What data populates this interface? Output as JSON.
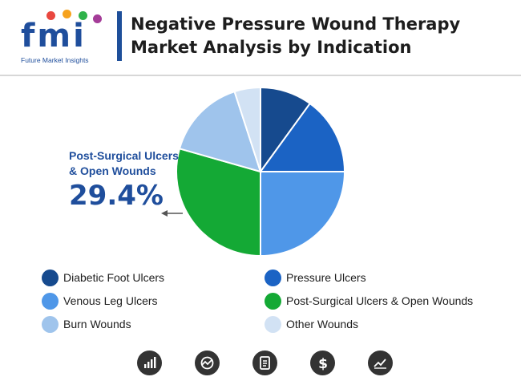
{
  "header": {
    "logo_text": "fmi",
    "logo_tagline": "Future Market Insights",
    "title_line1": "Negative Pressure Wound Therapy",
    "title_line2": "Market Analysis by Indication"
  },
  "chart_data": {
    "type": "pie",
    "title": "Negative Pressure Wound Therapy Market Analysis by Indication",
    "unit": "%",
    "slices": [
      {
        "name": "Diabetic Foot Ulcers",
        "value": 10.0,
        "color": "#164a8e"
      },
      {
        "name": "Pressure Ulcers",
        "value": 15.0,
        "color": "#1b63c4"
      },
      {
        "name": "Venous Leg Ulcers",
        "value": 25.0,
        "color": "#4f97e8"
      },
      {
        "name": "Post-Surgical Ulcers & Open Wounds",
        "value": 29.4,
        "color": "#14a935"
      },
      {
        "name": "Burn Wounds",
        "value": 15.6,
        "color": "#9fc4ec"
      },
      {
        "name": "Other Wounds",
        "value": 5.0,
        "color": "#d2e2f4"
      }
    ],
    "legend_position": "bottom",
    "annotation": {
      "label": "Post-Surgical Ulcers & Open Wounds",
      "value_text": "29.4%"
    }
  },
  "footer": {
    "icons": [
      "bar-chart-icon",
      "pie-gauge-icon",
      "document-icon",
      "dollar-icon",
      "trend-line-icon"
    ]
  }
}
